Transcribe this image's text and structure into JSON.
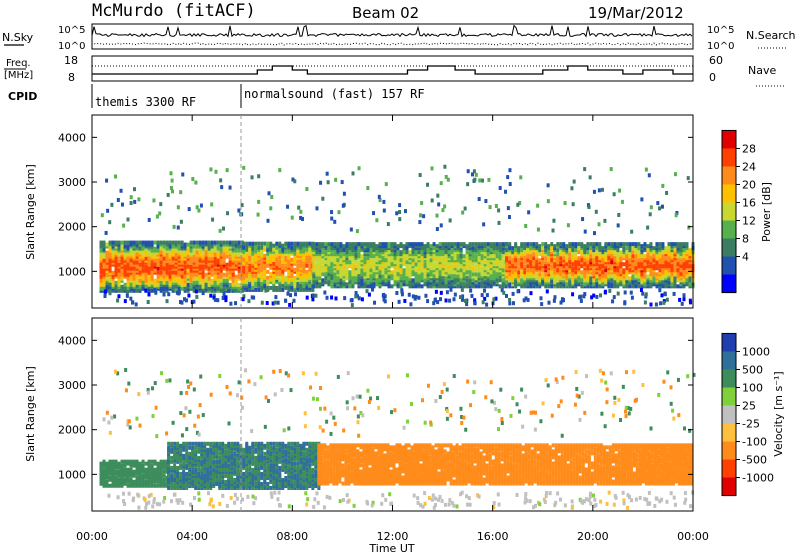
{
  "header": {
    "station": "McMurdo (fitACF)",
    "beam": "Beam 02",
    "date": "19/Mar/2012"
  },
  "strip": {
    "nsky_label": "N.Sky",
    "nsky_ticks": [
      "10^5",
      "10^0"
    ],
    "nsearch_label": "N.Search",
    "nsearch_ticks": [
      "10^5",
      "10^0"
    ],
    "freq_label_1": "Freq.",
    "freq_label_2": "[MHz]",
    "freq_ticks": [
      "18",
      "8"
    ],
    "nave_label": "Nave",
    "nave_ticks": [
      "60",
      "0"
    ],
    "cpid_label": "CPID",
    "cpid_segments": [
      "themis 3300 RF",
      "normalsound (fast) 157 RF"
    ]
  },
  "panels": [
    {
      "name": "power",
      "ylabel": "Slant Range [km]",
      "yticks": [
        "4000",
        "3000",
        "2000",
        "1000"
      ],
      "colorbar_label": "Power [dB]",
      "colorbar_ticks": [
        "28",
        "24",
        "20",
        "16",
        "12",
        "8",
        "4"
      ],
      "colorbar_colors": [
        "#e00000",
        "#ff4000",
        "#ff8c1a",
        "#ffc000",
        "#c8d830",
        "#56b04e",
        "#3a7d62",
        "#2050b0",
        "#0000ff"
      ]
    },
    {
      "name": "velocity",
      "ylabel": "Slant Range [km]",
      "yticks": [
        "4000",
        "3000",
        "2000",
        "1000"
      ],
      "colorbar_label": "Velocity [m s⁻¹]",
      "colorbar_ticks": [
        "1000",
        "500",
        "100",
        "25",
        "-25",
        "-100",
        "-500",
        "-1000"
      ],
      "colorbar_colors": [
        "#1f3fb0",
        "#2f6f9a",
        "#3c8c5c",
        "#7fd03a",
        "#c0c0c0",
        "#ffc040",
        "#ff8c1a",
        "#ff4000",
        "#e00000"
      ]
    }
  ],
  "xaxis": {
    "label": "Time UT",
    "ticks": [
      "00:00",
      "04:00",
      "08:00",
      "12:00",
      "16:00",
      "20:00",
      "00:00"
    ]
  },
  "chart_data": [
    {
      "type": "heatmap",
      "title": "Power [dB]",
      "xlabel": "Time UT",
      "ylabel": "Slant Range [km]",
      "xlim_hours": [
        0,
        24
      ],
      "ylim_km": [
        180,
        4500
      ],
      "colorscale_db": [
        0,
        32
      ],
      "bands": [
        {
          "t_start": 0.3,
          "t_end": 6.0,
          "range_lo": 600,
          "range_hi": 1550,
          "core_db": 26,
          "edge_db": 8
        },
        {
          "t_start": 6.0,
          "t_end": 8.8,
          "range_lo": 620,
          "range_hi": 1500,
          "core_db": 24,
          "edge_db": 8
        },
        {
          "t_start": 8.8,
          "t_end": 16.5,
          "range_lo": 700,
          "range_hi": 1500,
          "core_db": 16,
          "edge_db": 8
        },
        {
          "t_start": 16.5,
          "t_end": 24.0,
          "range_lo": 700,
          "range_hi": 1500,
          "core_db": 26,
          "edge_db": 8
        }
      ]
    },
    {
      "type": "heatmap",
      "title": "Velocity [m s⁻¹]",
      "xlabel": "Time UT",
      "ylabel": "Slant Range [km]",
      "xlim_hours": [
        0,
        24
      ],
      "ylim_km": [
        180,
        4500
      ],
      "colorscale_ms": [
        -1000,
        1000
      ],
      "bands": [
        {
          "t_start": 0.3,
          "t_end": 3.0,
          "range_lo": 700,
          "range_hi": 1250,
          "velocity": 200
        },
        {
          "t_start": 3.0,
          "t_end": 9.0,
          "range_lo": 650,
          "range_hi": 1650,
          "velocity": 300
        },
        {
          "t_start": 9.0,
          "t_end": 24.0,
          "range_lo": 750,
          "range_hi": 1650,
          "velocity": -300
        }
      ]
    }
  ]
}
